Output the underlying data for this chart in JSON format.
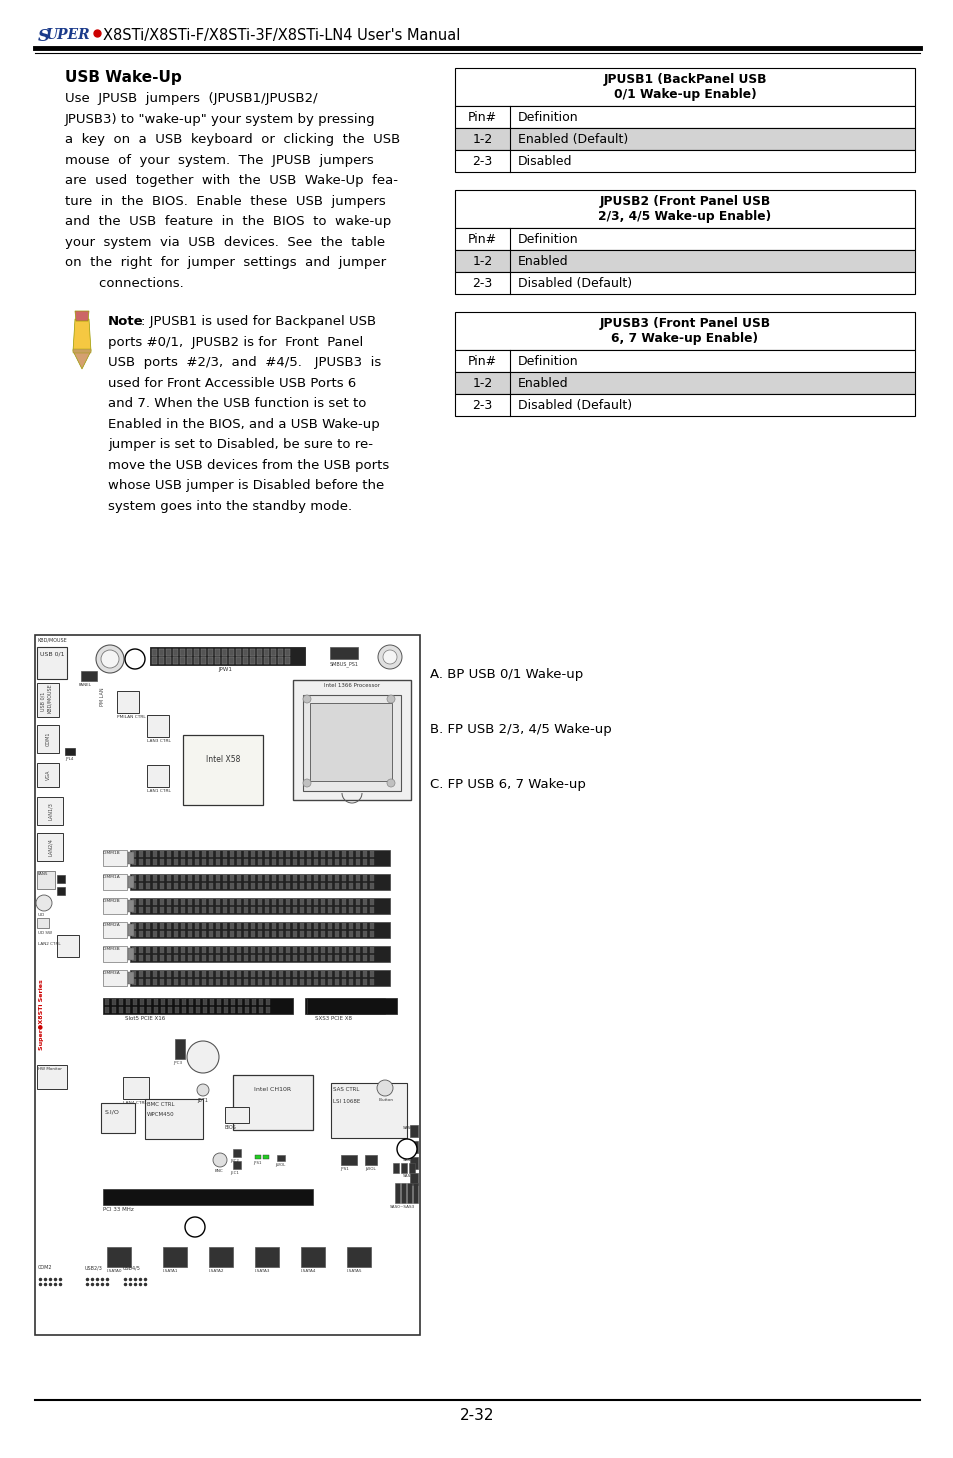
{
  "page_width": 9.54,
  "page_height": 14.58,
  "bg_color": "#ffffff",
  "header_super": "SUPER",
  "header_bullet_color": "#cc0000",
  "header_text_color_super": "#1a237e",
  "header_text": "X8STi/X8STi-F/X8STi-3F/X8STi-LN4 User's Manual",
  "section_title": "USB Wake-Up",
  "table1_title": "JPUSB1 (BackPanel USB\n0/1 Wake-up Enable)",
  "table1_rows": [
    [
      "Pin#",
      "Definition",
      false
    ],
    [
      "1-2",
      "Enabled (Default)",
      true
    ],
    [
      "2-3",
      "Disabled",
      false
    ]
  ],
  "table2_title": "JPUSB2 (Front Panel USB\n2/3, 4/5 Wake-up Enable)",
  "table2_rows": [
    [
      "Pin#",
      "Definition",
      false
    ],
    [
      "1-2",
      "Enabled",
      true
    ],
    [
      "2-3",
      "Disabled (Default)",
      false
    ]
  ],
  "table3_title": "JPUSB3 (Front Panel USB\n6, 7 Wake-up Enable)",
  "table3_rows": [
    [
      "Pin#",
      "Definition",
      false
    ],
    [
      "1-2",
      "Enabled",
      true
    ],
    [
      "2-3",
      "Disabled (Default)",
      false
    ]
  ],
  "diagram_labels": [
    "A. BP USB 0/1 Wake-up",
    "B. FP USB 2/3, 4/5 Wake-up",
    "C. FP USB 6, 7 Wake-up"
  ],
  "page_number": "2-32",
  "table_row_highlight": "#d3d3d3",
  "table_border_color": "#000000"
}
